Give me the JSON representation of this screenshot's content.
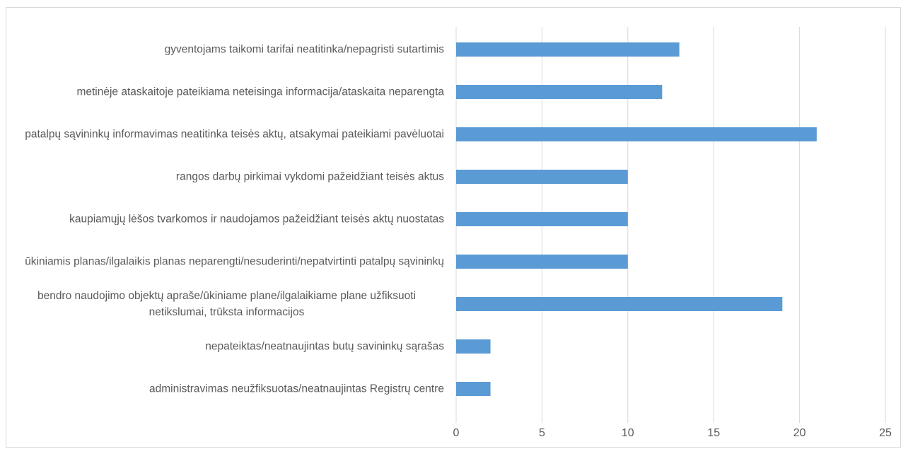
{
  "chart_data": {
    "type": "bar",
    "orientation": "horizontal",
    "categories": [
      "gyventojams taikomi tarifai neatitinka/nepagristi sutartimis",
      "metinėje ataskaitoje pateikiama neteisinga informacija/ataskaita neparengta",
      "patalpų sąvininkų informavimas neatitinka teisės aktų, atsakymai pateikiami pavėluotai",
      "rangos darbų pirkimai vykdomi pažeidžiant teisės aktus",
      "kaupiamųjų lėšos tvarkomos ir naudojamos pažeidžiant teisės aktų nuostatas",
      "ūkiniamis planas/ilgalaikis planas neparengti/nesuderinti/nepatvirtinti patalpų sąvininkų",
      "bendro naudojimo objektų apraše/ūkiniame plane/ilgalaikiame plane užfiksuoti netikslumai, trūksta informacijos",
      "nepateiktas/neatnaujintas butų savininkų sąrašas",
      "administravimas neužfiksuotas/neatnaujintas Registrų centre"
    ],
    "values": [
      13,
      12,
      21,
      10,
      10,
      10,
      19,
      2,
      2
    ],
    "color": "#5b9bd5",
    "xlim": [
      0,
      25
    ],
    "xticks": [
      0,
      5,
      10,
      15,
      20,
      25
    ],
    "grid": true
  }
}
